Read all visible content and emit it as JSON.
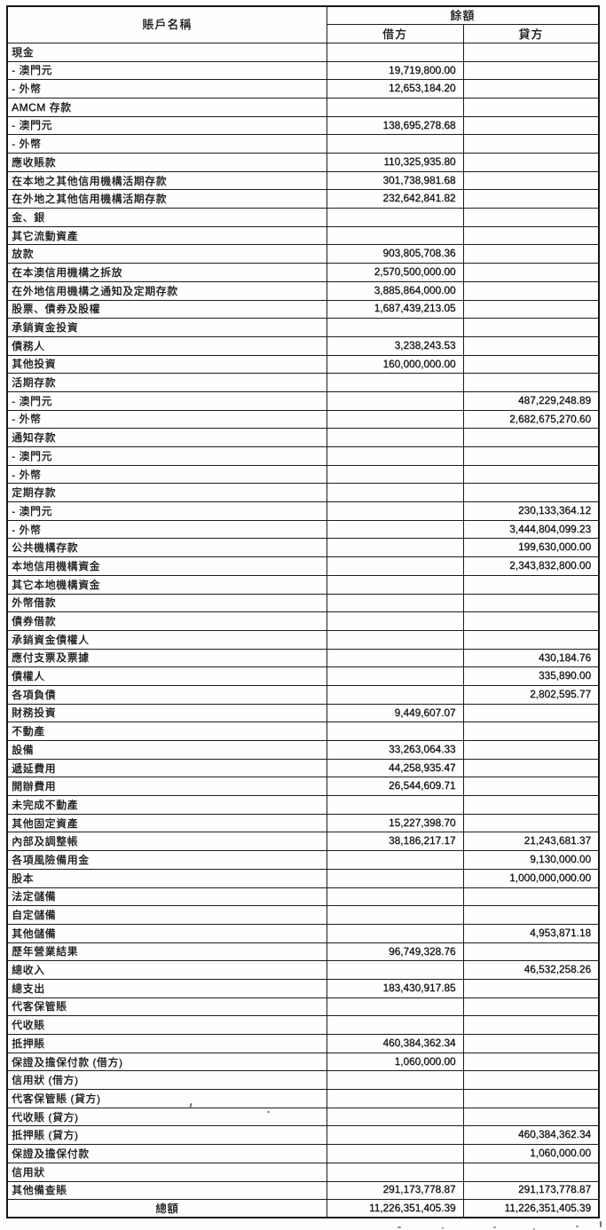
{
  "table": {
    "header": {
      "account_name": "賬戶名稱",
      "balance": "餘額",
      "debit": "借方",
      "credit": "貸方"
    },
    "rows": [
      {
        "label": "現金",
        "debit": "",
        "credit": ""
      },
      {
        "label": "- 澳門元",
        "debit": "19,719,800.00",
        "credit": ""
      },
      {
        "label": "- 外幣",
        "debit": "12,653,184.20",
        "credit": ""
      },
      {
        "label": "AMCM 存款",
        "debit": "",
        "credit": ""
      },
      {
        "label": "- 澳門元",
        "debit": "138,695,278.68",
        "credit": ""
      },
      {
        "label": "- 外幣",
        "debit": "",
        "credit": ""
      },
      {
        "label": "應收賬款",
        "debit": "110,325,935.80",
        "credit": ""
      },
      {
        "label": "在本地之其他信用機構活期存款",
        "debit": "301,738,981.68",
        "credit": ""
      },
      {
        "label": "在外地之其他信用機構活期存款",
        "debit": "232,642,841.82",
        "credit": ""
      },
      {
        "label": "金、銀",
        "debit": "",
        "credit": ""
      },
      {
        "label": "其它流動資產",
        "debit": "",
        "credit": ""
      },
      {
        "label": "放款",
        "debit": "903,805,708.36",
        "credit": ""
      },
      {
        "label": "在本澳信用機構之拆放",
        "debit": "2,570,500,000.00",
        "credit": ""
      },
      {
        "label": "在外地信用機構之通知及定期存款",
        "debit": "3,885,864,000.00",
        "credit": ""
      },
      {
        "label": "股票、債券及股權",
        "debit": "1,687,439,213.05",
        "credit": ""
      },
      {
        "label": "承銷資金投資",
        "debit": "",
        "credit": ""
      },
      {
        "label": "債務人",
        "debit": "3,238,243.53",
        "credit": ""
      },
      {
        "label": "其他投資",
        "debit": "160,000,000.00",
        "credit": ""
      },
      {
        "label": "活期存款",
        "debit": "",
        "credit": ""
      },
      {
        "label": "- 澳門元",
        "debit": "",
        "credit": "487,229,248.89"
      },
      {
        "label": "- 外幣",
        "debit": "",
        "credit": "2,682,675,270.60"
      },
      {
        "label": "通知存款",
        "debit": "",
        "credit": ""
      },
      {
        "label": "- 澳門元",
        "debit": "",
        "credit": ""
      },
      {
        "label": "- 外幣",
        "debit": "",
        "credit": ""
      },
      {
        "label": "定期存款",
        "debit": "",
        "credit": ""
      },
      {
        "label": "- 澳門元",
        "debit": "",
        "credit": "230,133,364.12"
      },
      {
        "label": "- 外幣",
        "debit": "",
        "credit": "3,444,804,099.23"
      },
      {
        "label": "公共機構存款",
        "debit": "",
        "credit": "199,630,000.00"
      },
      {
        "label": "本地信用機構資金",
        "debit": "",
        "credit": "2,343,832,800.00"
      },
      {
        "label": "其它本地機構資金",
        "debit": "",
        "credit": ""
      },
      {
        "label": "外幣借款",
        "debit": "",
        "credit": ""
      },
      {
        "label": "債券借款",
        "debit": "",
        "credit": ""
      },
      {
        "label": "承銷資金債權人",
        "debit": "",
        "credit": ""
      },
      {
        "label": "應付支票及票據",
        "debit": "",
        "credit": "430,184.76"
      },
      {
        "label": "債權人",
        "debit": "",
        "credit": "335,890.00"
      },
      {
        "label": "各項負債",
        "debit": "",
        "credit": "2,802,595.77"
      },
      {
        "label": "財務投資",
        "debit": "9,449,607.07",
        "credit": ""
      },
      {
        "label": "不動產",
        "debit": "",
        "credit": ""
      },
      {
        "label": "設備",
        "debit": "33,263,064.33",
        "credit": ""
      },
      {
        "label": "遞延費用",
        "debit": "44,258,935.47",
        "credit": ""
      },
      {
        "label": "開辦費用",
        "debit": "26,544,609.71",
        "credit": ""
      },
      {
        "label": "未完成不動產",
        "debit": "",
        "credit": ""
      },
      {
        "label": "其他固定資產",
        "debit": "15,227,398.70",
        "credit": ""
      },
      {
        "label": "內部及調整帳",
        "debit": "38,186,217.17",
        "credit": "21,243,681.37"
      },
      {
        "label": "各項風險備用金",
        "debit": "",
        "credit": "9,130,000.00"
      },
      {
        "label": "股本",
        "debit": "",
        "credit": "1,000,000,000.00"
      },
      {
        "label": "法定儲備",
        "debit": "",
        "credit": ""
      },
      {
        "label": "自定儲備",
        "debit": "",
        "credit": ""
      },
      {
        "label": "其他儲備",
        "debit": "",
        "credit": "4,953,871.18"
      },
      {
        "label": "歷年營業結果",
        "debit": "96,749,328.76",
        "credit": ""
      },
      {
        "label": "總收入",
        "debit": "",
        "credit": "46,532,258.26"
      },
      {
        "label": "總支出",
        "debit": "183,430,917.85",
        "credit": ""
      },
      {
        "label": "代客保管賬",
        "debit": "",
        "credit": ""
      },
      {
        "label": "代收賬",
        "debit": "",
        "credit": ""
      },
      {
        "label": "抵押賬",
        "debit": "460,384,362.34",
        "credit": ""
      },
      {
        "label": "保證及擔保付款 (借方)",
        "debit": "1,060,000.00",
        "credit": ""
      },
      {
        "label": "信用狀 (借方)",
        "debit": "",
        "credit": ""
      },
      {
        "label": "代客保管賬 (貸方)",
        "debit": "",
        "credit": ""
      },
      {
        "label": "代收賬 (貸方)",
        "debit": "",
        "credit": ""
      },
      {
        "label": "抵押賬 (貸方)",
        "debit": "",
        "credit": "460,384,362.34"
      },
      {
        "label": "保證及擔保付款",
        "debit": "",
        "credit": "1,060,000.00"
      },
      {
        "label": "信用狀",
        "debit": "",
        "credit": ""
      },
      {
        "label": "其他備查賬",
        "debit": "291,173,778.87",
        "credit": "291,173,778.87"
      }
    ],
    "footer": {
      "label": "總額",
      "debit": "11,226,351,405.39",
      "credit": "11,226,351,405.39"
    }
  }
}
